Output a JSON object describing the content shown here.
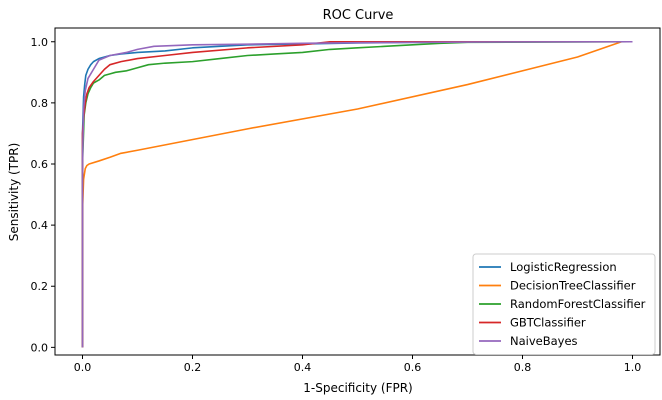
{
  "chart_data": {
    "type": "line",
    "title": "ROC Curve",
    "xlabel": "1-Specificity (FPR)",
    "ylabel": "Sensitivity (TPR)",
    "xlim": [
      -0.05,
      1.05
    ],
    "ylim": [
      -0.025,
      1.045
    ],
    "xticks": [
      0.0,
      0.2,
      0.4,
      0.6,
      0.8,
      1.0
    ],
    "xtick_labels": [
      "0.0",
      "0.2",
      "0.4",
      "0.6",
      "0.8",
      "1.0"
    ],
    "yticks": [
      0.0,
      0.2,
      0.4,
      0.6,
      0.8,
      1.0
    ],
    "ytick_labels": [
      "0.0",
      "0.2",
      "0.4",
      "0.6",
      "0.8",
      "1.0"
    ],
    "grid": false,
    "legend_position": "lower-right",
    "series": [
      {
        "name": "LogisticRegression",
        "color": "#1f77b4",
        "x": [
          0.0,
          0.0,
          0.002,
          0.004,
          0.006,
          0.01,
          0.015,
          0.02,
          0.03,
          0.05,
          0.07,
          0.1,
          0.15,
          0.2,
          0.3,
          0.4,
          0.5,
          0.6,
          0.72,
          0.8,
          1.0
        ],
        "y": [
          0.0,
          0.7,
          0.82,
          0.86,
          0.89,
          0.91,
          0.925,
          0.935,
          0.945,
          0.955,
          0.96,
          0.965,
          0.97,
          0.98,
          0.99,
          0.993,
          0.996,
          0.998,
          0.999,
          1.0,
          1.0
        ]
      },
      {
        "name": "DecisionTreeClassifier",
        "color": "#ff7f0e",
        "x": [
          0.0,
          0.0,
          0.002,
          0.005,
          0.008,
          0.012,
          0.03,
          0.05,
          0.07,
          0.1,
          0.3,
          0.5,
          0.7,
          0.9,
          0.98,
          1.0
        ],
        "y": [
          0.0,
          0.45,
          0.55,
          0.585,
          0.595,
          0.6,
          0.61,
          0.622,
          0.635,
          0.645,
          0.715,
          0.78,
          0.86,
          0.95,
          1.0,
          1.0
        ]
      },
      {
        "name": "RandomForestClassifier",
        "color": "#2ca02c",
        "x": [
          0.0,
          0.0,
          0.003,
          0.006,
          0.01,
          0.015,
          0.02,
          0.03,
          0.04,
          0.05,
          0.06,
          0.08,
          0.1,
          0.12,
          0.15,
          0.2,
          0.25,
          0.3,
          0.35,
          0.4,
          0.45,
          0.5,
          0.55,
          0.6,
          0.65,
          0.7,
          1.0
        ],
        "y": [
          0.0,
          0.6,
          0.76,
          0.8,
          0.83,
          0.85,
          0.865,
          0.875,
          0.89,
          0.895,
          0.9,
          0.905,
          0.915,
          0.925,
          0.93,
          0.935,
          0.945,
          0.955,
          0.96,
          0.965,
          0.975,
          0.98,
          0.985,
          0.99,
          0.995,
          0.998,
          1.0
        ]
      },
      {
        "name": "GBTClassifier",
        "color": "#d62728",
        "x": [
          0.0,
          0.0,
          0.002,
          0.005,
          0.008,
          0.012,
          0.02,
          0.03,
          0.04,
          0.05,
          0.07,
          0.1,
          0.15,
          0.2,
          0.3,
          0.4,
          0.45,
          0.6,
          0.8,
          1.0
        ],
        "y": [
          0.0,
          0.7,
          0.75,
          0.8,
          0.83,
          0.85,
          0.87,
          0.89,
          0.91,
          0.925,
          0.935,
          0.945,
          0.955,
          0.965,
          0.98,
          0.99,
          1.0,
          1.0,
          1.0,
          1.0
        ]
      },
      {
        "name": "NaiveBayes",
        "color": "#9467bd",
        "x": [
          0.0,
          0.0,
          0.002,
          0.005,
          0.01,
          0.02,
          0.03,
          0.05,
          0.08,
          0.1,
          0.13,
          0.2,
          0.3,
          0.4,
          0.5,
          0.7,
          1.0
        ],
        "y": [
          0.0,
          0.6,
          0.78,
          0.84,
          0.88,
          0.91,
          0.94,
          0.955,
          0.965,
          0.975,
          0.985,
          0.99,
          0.992,
          0.995,
          0.997,
          0.999,
          1.0
        ]
      }
    ]
  }
}
